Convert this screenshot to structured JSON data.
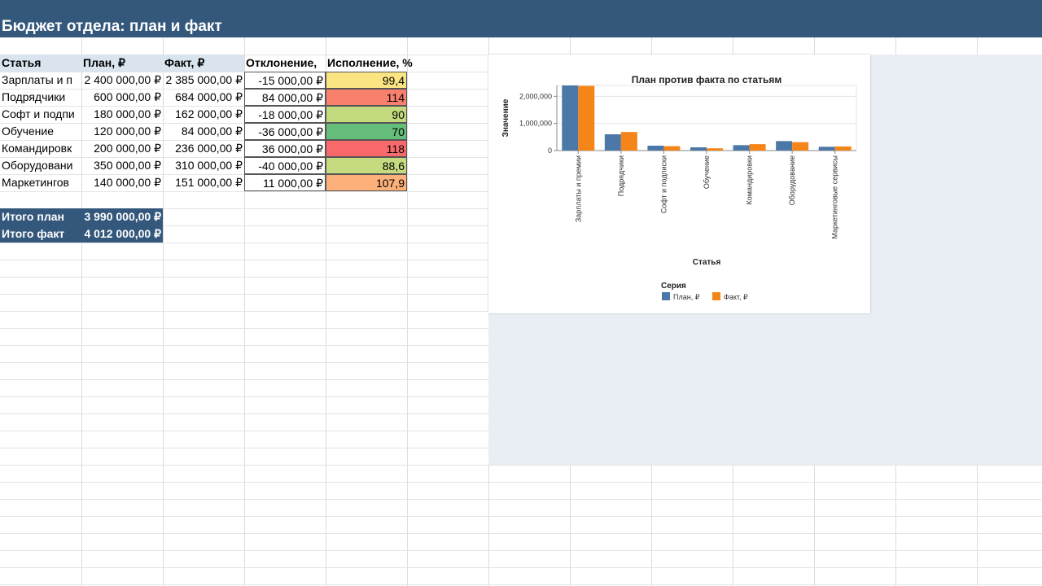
{
  "title": "Бюджет отдела: план и факт",
  "table": {
    "headers": [
      "Статья",
      "План, ₽",
      "Факт, ₽",
      "Отклонение,",
      "Исполнение, %"
    ],
    "rows": [
      {
        "name": "Зарплаты и п",
        "plan": "2 400 000,00 ₽",
        "fact": "2 385 000,00 ₽",
        "dev": "-15 000,00 ₽",
        "pct": "99,4",
        "color": "#fbe583"
      },
      {
        "name": "Подрядчики",
        "plan": "600 000,00 ₽",
        "fact": "684 000,00 ₽",
        "dev": "84 000,00 ₽",
        "pct": "114",
        "color": "#f8806c"
      },
      {
        "name": "Софт и подпи",
        "plan": "180 000,00 ₽",
        "fact": "162 000,00 ₽",
        "dev": "-18 000,00 ₽",
        "pct": "90",
        "color": "#c4da7e"
      },
      {
        "name": "Обучение",
        "plan": "120 000,00 ₽",
        "fact": "84 000,00 ₽",
        "dev": "-36 000,00 ₽",
        "pct": "70",
        "color": "#64bd7b"
      },
      {
        "name": "Командировк",
        "plan": "200 000,00 ₽",
        "fact": "236 000,00 ₽",
        "dev": "36 000,00 ₽",
        "pct": "118",
        "color": "#f8696b"
      },
      {
        "name": "Оборудовани",
        "plan": "350 000,00 ₽",
        "fact": "310 000,00 ₽",
        "dev": "-40 000,00 ₽",
        "pct": "88,6",
        "color": "#c6db7f"
      },
      {
        "name": "Маркетингов",
        "plan": "140 000,00 ₽",
        "fact": "151 000,00 ₽",
        "dev": "11 000,00 ₽",
        "pct": "107,9",
        "color": "#fcb07a"
      }
    ],
    "totals": [
      {
        "label": "Итого план",
        "value": "3 990 000,00 ₽"
      },
      {
        "label": "Итого факт",
        "value": "4 012 000,00 ₽"
      }
    ]
  },
  "chart_data": {
    "type": "bar",
    "title": "План против факта по статьям",
    "xlabel": "Статья",
    "ylabel": "Значение",
    "categories": [
      "Зарплаты и премии",
      "Подрядчики",
      "Софт и подписки",
      "Обучение",
      "Командировки",
      "Оборудование",
      "Маркетинговые сервисы"
    ],
    "series": [
      {
        "name": "План, ₽",
        "values": [
          2400000,
          600000,
          180000,
          120000,
          200000,
          350000,
          140000
        ]
      },
      {
        "name": "Факт, ₽",
        "values": [
          2385000,
          684000,
          162000,
          84000,
          236000,
          310000,
          151000
        ]
      }
    ],
    "ylim": [
      0,
      2400000
    ],
    "yticks": [
      "2,000,000",
      "1,000,000",
      "0"
    ],
    "ytick_values": [
      2000000,
      1000000,
      0
    ],
    "grid": true,
    "legend_title": "Серия",
    "legend_position": "bottom-left",
    "colors": [
      "#4c78a8",
      "#f58518"
    ]
  }
}
